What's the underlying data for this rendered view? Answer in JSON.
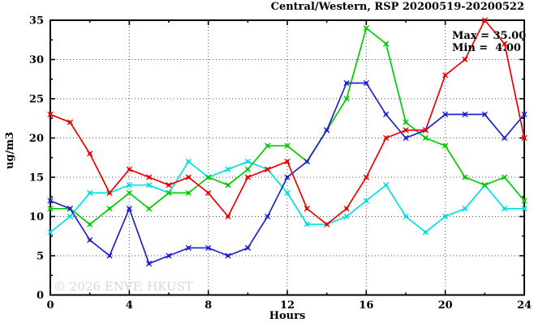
{
  "title": "Central/Western, RSP 20200519-20200522",
  "legend": {
    "max_label": "Max = 35.00",
    "min_label": "Min =  4.00"
  },
  "watermark": "© 2026 ENVF, HKUST",
  "chart_data": {
    "type": "line",
    "title": "Central/Western, RSP 20200519-20200522",
    "xlabel": "Hours",
    "ylabel": "ug/m3",
    "xlim": [
      0,
      24
    ],
    "ylim": [
      0,
      35
    ],
    "x_major_ticks": [
      0,
      4,
      8,
      12,
      16,
      20,
      24
    ],
    "x_minor_step": 2,
    "y_major_ticks": [
      0,
      5,
      10,
      15,
      20,
      25,
      30,
      35
    ],
    "y_minor_step": 2.5,
    "grid": "dotted lines at major ticks, mirrored inward ticks on all four borders",
    "legend_position": "top-right inside plot",
    "stats": {
      "max": 35.0,
      "min": 4.0
    },
    "x": [
      0,
      1,
      2,
      3,
      4,
      5,
      6,
      7,
      8,
      9,
      10,
      11,
      12,
      13,
      14,
      15,
      16,
      17,
      18,
      19,
      20,
      21,
      22,
      23,
      24
    ],
    "series": [
      {
        "name": "series-cyan",
        "color": "#00e0e0",
        "values": [
          8,
          10,
          13,
          13,
          14,
          14,
          13,
          17,
          15,
          16,
          17,
          16,
          13,
          9,
          9,
          10,
          12,
          14,
          10,
          8,
          10,
          11,
          14,
          11,
          11
        ]
      },
      {
        "name": "series-green",
        "color": "#00cc00",
        "values": [
          11,
          11,
          9,
          11,
          13,
          11,
          13,
          13,
          15,
          14,
          16,
          19,
          19,
          17,
          21,
          25,
          34,
          32,
          22,
          20,
          19,
          15,
          14,
          15,
          12
        ]
      },
      {
        "name": "series-blue",
        "color": "#2222cc",
        "values": [
          12,
          11,
          7,
          5,
          11,
          4,
          5,
          6,
          6,
          5,
          6,
          10,
          15,
          17,
          21,
          27,
          27,
          23,
          20,
          21,
          23,
          23,
          23,
          20,
          23
        ]
      },
      {
        "name": "series-red",
        "color": "#ee0000",
        "values": [
          23,
          22,
          18,
          13,
          16,
          15,
          14,
          15,
          13,
          10,
          15,
          16,
          17,
          11,
          9,
          11,
          15,
          20,
          21,
          21,
          28,
          30,
          35,
          32,
          20
        ]
      }
    ]
  }
}
